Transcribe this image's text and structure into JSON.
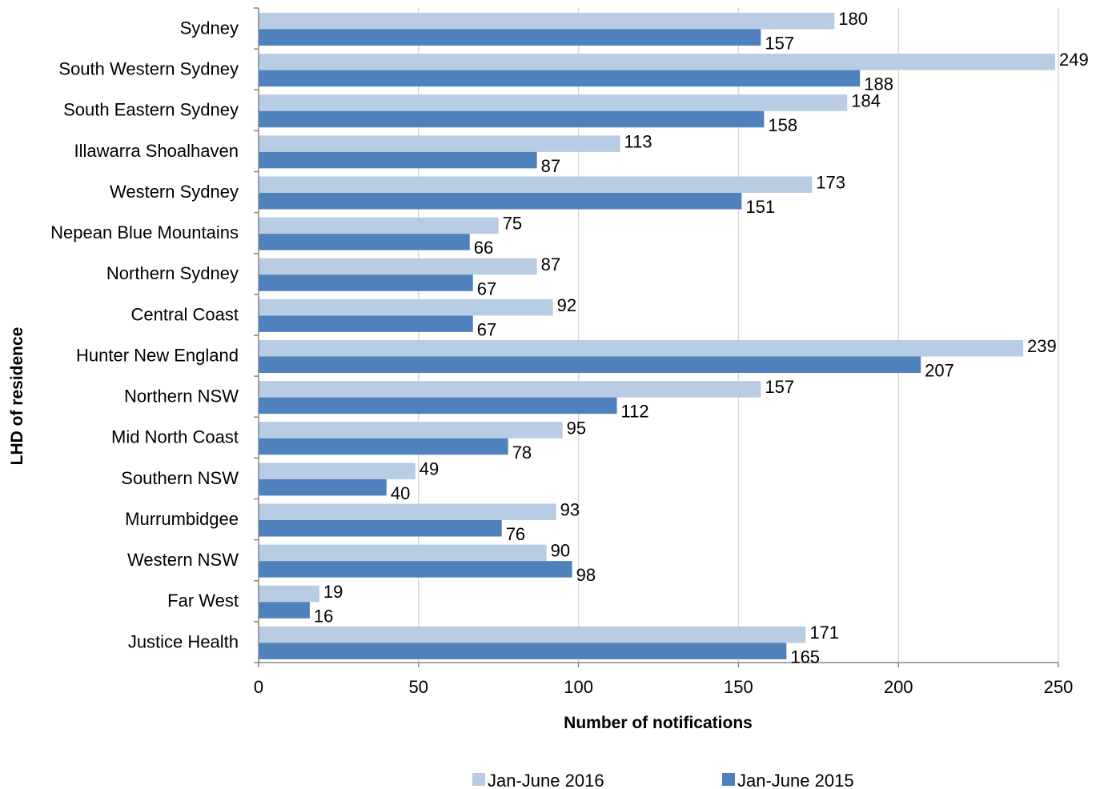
{
  "chart_data": {
    "type": "bar",
    "orientation": "horizontal",
    "title": "",
    "xlabel": "Number of notifications",
    "ylabel": "LHD of residence",
    "xlim": [
      0,
      250
    ],
    "xticks": [
      0,
      50,
      100,
      150,
      200,
      250
    ],
    "grid": "vertical",
    "legend_position": "bottom",
    "categories": [
      "Sydney",
      "South Western Sydney",
      "South Eastern Sydney",
      "Illawarra Shoalhaven",
      "Western Sydney",
      "Nepean Blue Mountains",
      "Northern Sydney",
      "Central Coast",
      "Hunter New England",
      "Northern NSW",
      "Mid North Coast",
      "Southern NSW",
      "Murrumbidgee",
      "Western NSW",
      "Far West",
      "Justice Health"
    ],
    "series": [
      {
        "name": "Jan-June 2016",
        "color": "#b8cce4",
        "values": [
          180,
          249,
          184,
          113,
          173,
          75,
          87,
          92,
          239,
          157,
          95,
          49,
          93,
          90,
          19,
          171
        ]
      },
      {
        "name": "Jan-June 2015",
        "color": "#4f81bd",
        "values": [
          157,
          188,
          158,
          87,
          151,
          66,
          67,
          67,
          207,
          112,
          78,
          40,
          76,
          98,
          16,
          165
        ]
      }
    ],
    "colors": {
      "gridline": "#d9d9d9",
      "axis": "#868686"
    }
  }
}
